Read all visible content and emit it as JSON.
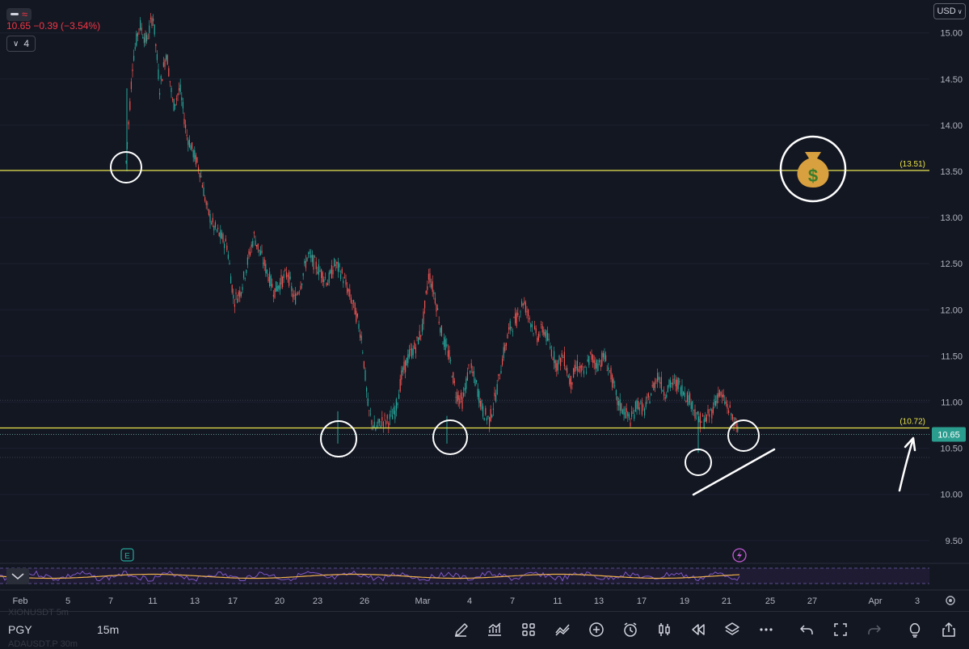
{
  "header": {
    "quote": "10.65 −0.39 (−3.54%)",
    "indicator_count": "4"
  },
  "currency_button": "USD",
  "price_axis": {
    "ticks": [
      "15.00",
      "14.50",
      "14.00",
      "13.50",
      "13.00",
      "12.50",
      "12.00",
      "11.50",
      "11.00",
      "10.50",
      "10.00",
      "9.50"
    ],
    "line_labels": {
      "upper": "(13.51)",
      "lower": "(10.72)"
    },
    "last_price": "10.65"
  },
  "time_axis": {
    "labels": [
      "Feb",
      "5",
      "7",
      "11",
      "13",
      "17",
      "20",
      "23",
      "26",
      "Mar",
      "4",
      "7",
      "11",
      "13",
      "17",
      "19",
      "21",
      "25",
      "27",
      "Apr",
      "3"
    ]
  },
  "markers": {
    "earnings": "E"
  },
  "toolbar": {
    "symbol": "PGY",
    "interval": "15m",
    "watch_ghost_1": "XIONUSDT   5m",
    "watch_ghost_2": "ADAUSDT.P  30m"
  },
  "colors": {
    "background": "#131722",
    "up": "#26a69a",
    "down": "#ef5350",
    "horizontal_line": "#e8e24a",
    "last_price": "#2a9d8f",
    "rsi": "#7e57c2",
    "rsi_ma": "#f0b24a"
  },
  "chart_data": {
    "type": "line",
    "ylim": [
      9.2,
      15.25
    ],
    "horizontal_lines": [
      13.51,
      10.72
    ],
    "series": [
      {
        "values": [
          13.6,
          14.7,
          15.1,
          14.9,
          15.2,
          14.4,
          14.8,
          14.2,
          14.4,
          13.9,
          13.7,
          13.5,
          13.1,
          12.9,
          12.8,
          12.7,
          12.1,
          12.2,
          12.5,
          12.8,
          12.6,
          12.4,
          12.2,
          12.3,
          12.4,
          12.1,
          12.3,
          12.6,
          12.5,
          12.4,
          12.3,
          12.5,
          12.4,
          12.2,
          12.0,
          11.7,
          10.9,
          10.7,
          10.8,
          10.8,
          10.9,
          11.3,
          11.5,
          11.6,
          11.8,
          12.4,
          12.1,
          11.7,
          11.5,
          11.1,
          11.0,
          11.4,
          11.2,
          10.9,
          10.8,
          11.1,
          11.5,
          11.8,
          11.9,
          12.1,
          11.9,
          11.7,
          11.8,
          11.6,
          11.4,
          11.5,
          11.2,
          11.4,
          11.3,
          11.5,
          11.4,
          11.5,
          11.3,
          11.0,
          10.9,
          10.8,
          11.0,
          10.9,
          11.1,
          11.3,
          11.1,
          11.2,
          11.2,
          11.1,
          11.0,
          10.8,
          10.8,
          10.9,
          11.1,
          11.0,
          10.85,
          10.65
        ]
      }
    ]
  }
}
